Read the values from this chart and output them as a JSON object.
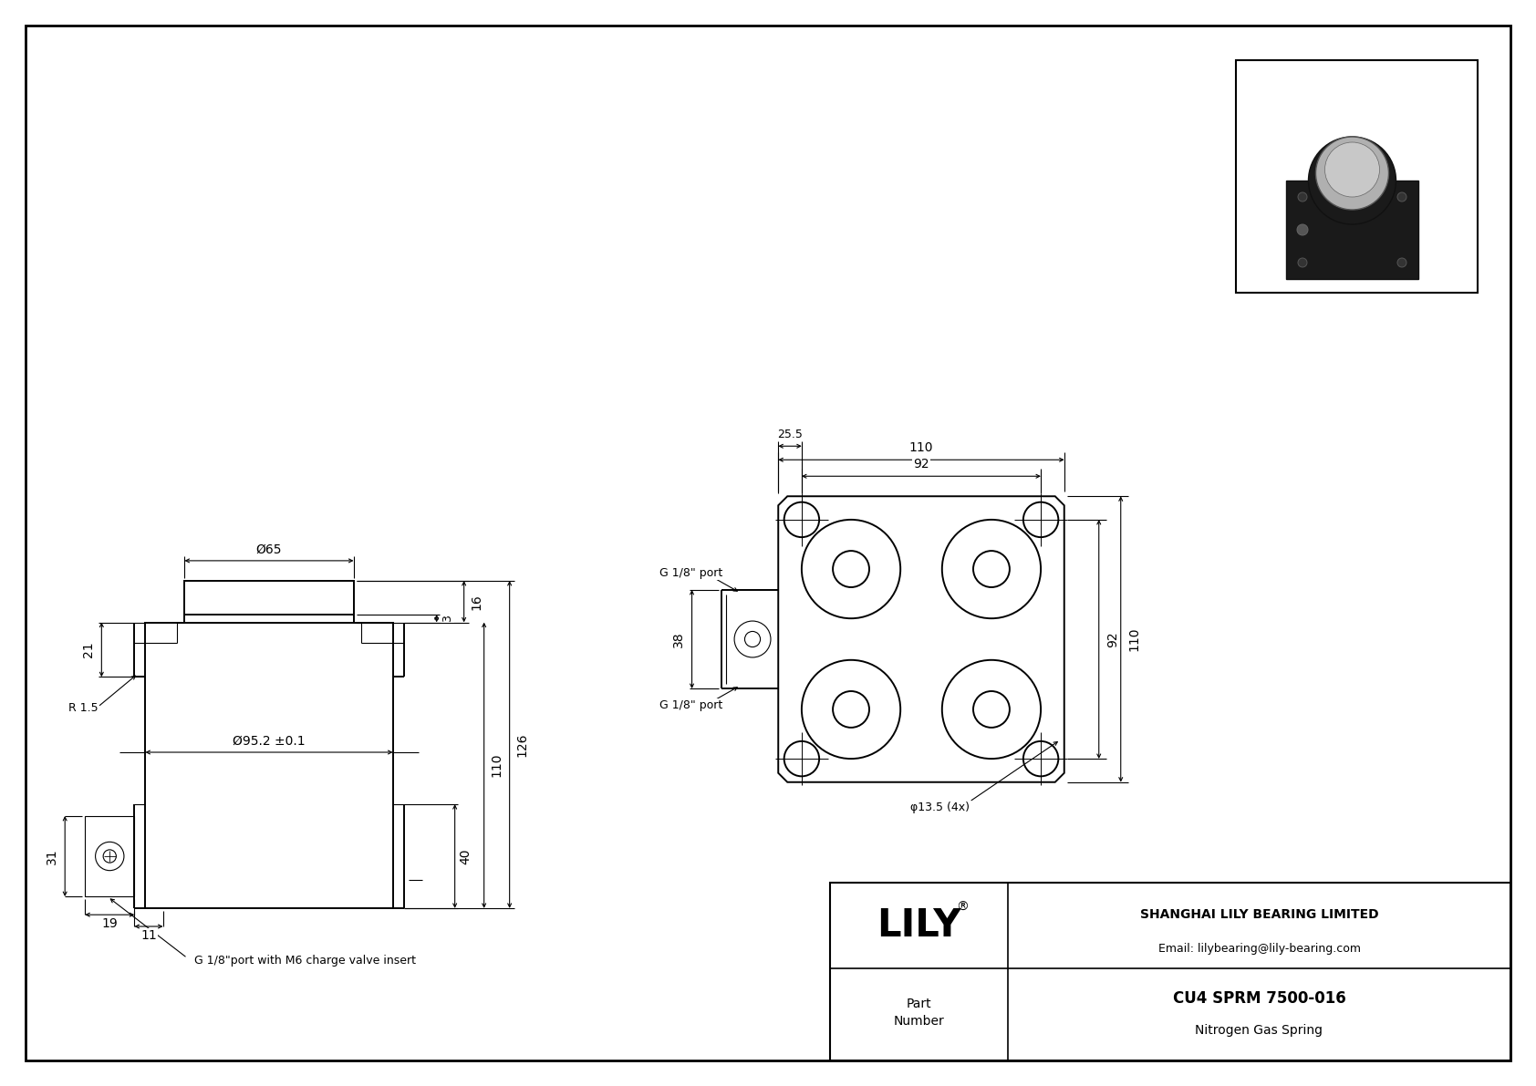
{
  "bg_color": "#ffffff",
  "line_color": "#000000",
  "title": "CU4 SPRM 7500-016",
  "subtitle": "Nitrogen Gas Spring",
  "company": "SHANGHAI LILY BEARING LIMITED",
  "email": "Email: lilybearing@lily-bearing.com",
  "lily_text": "LILY",
  "dims": {
    "phi65": "Ø65",
    "phi95": "Ø95.2 ±0.1",
    "phi13_5": "φ13.5 (4x)",
    "dim_16": "16",
    "dim_3": "3",
    "dim_21": "21",
    "dim_R15": "R 1.5",
    "dim_126": "126",
    "dim_110_v": "110",
    "dim_40": "40",
    "dim_31": "31",
    "dim_19": "19",
    "dim_11": "11",
    "dim_110_h": "110",
    "dim_92_h": "92",
    "dim_25_5": "25.5",
    "dim_38": "38",
    "dim_92_v": "92",
    "dim_110_vr": "110",
    "g18_port_top": "G 1/8\" port",
    "g18_port_bot": "G 1/8\" port",
    "g18_label": "G 1/8\"port with M6 charge valve insert"
  }
}
